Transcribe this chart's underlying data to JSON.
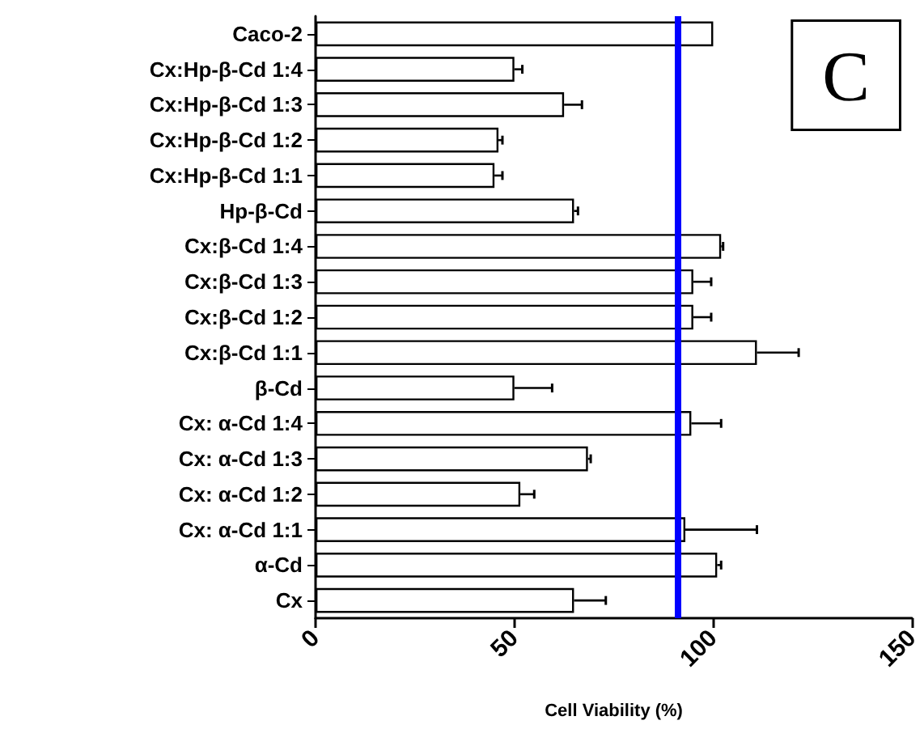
{
  "chart_data": {
    "type": "bar",
    "orientation": "horizontal",
    "xlabel": "Cell Viability (%)",
    "categories": [
      "Caco-2",
      "Cx:Hp-β-Cd 1:4",
      "Cx:Hp-β-Cd 1:3",
      "Cx:Hp-β-Cd 1:2",
      "Cx:Hp-β-Cd 1:1",
      "Hp-β-Cd",
      "Cx:β-Cd 1:4",
      "Cx:β-Cd 1:3",
      "Cx:β-Cd 1:2",
      "Cx:β-Cd 1:1",
      "β-Cd",
      "Cx: α-Cd 1:4",
      "Cx: α-Cd 1:3",
      "Cx: α-Cd 1:2",
      "Cx: α-Cd 1:1",
      "α-Cd",
      "Cx"
    ],
    "series": [
      {
        "color": "#ffffff",
        "values": [
          100,
          50,
          62.5,
          46,
          45,
          65,
          102,
          95,
          95,
          111,
          50,
          94.5,
          68.5,
          51.5,
          93,
          101,
          65
        ],
        "errors": [
          null,
          2,
          4.5,
          1,
          2,
          1,
          0.5,
          4.5,
          4.5,
          10.5,
          9.5,
          7.5,
          0.7,
          3.5,
          18,
          1,
          8
        ]
      }
    ],
    "xlim": [
      0,
      150
    ],
    "xticks": [
      0,
      50,
      100,
      150
    ],
    "ref_lines": [
      {
        "axis": "x",
        "value": 91,
        "color": "#0000ff"
      }
    ],
    "annotations": [
      "C"
    ],
    "grid": false
  }
}
